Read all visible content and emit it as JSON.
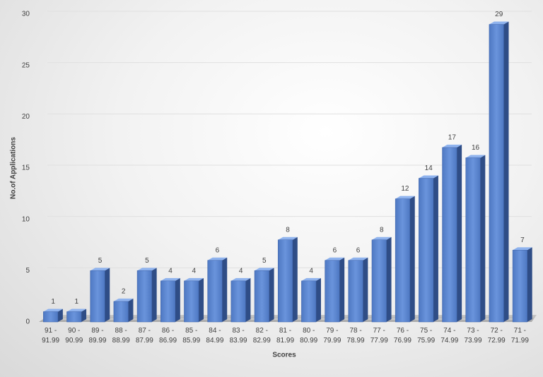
{
  "chart_data": {
    "type": "bar3d",
    "x_label": "Scores",
    "y_label": "No.of Applications",
    "categories": [
      "91 - 91.99",
      "90 - 90.99",
      "89 - 89.99",
      "88 - 88.99",
      "87 - 87.99",
      "86 - 86.99",
      "85 - 85.99",
      "84 - 84.99",
      "83 - 83.99",
      "82 - 82.99",
      "81 - 81.99",
      "80 - 80.99",
      "79 - 79.99",
      "78 - 78.99",
      "77 - 77.99",
      "76 - 76.99",
      "75 - 75.99",
      "74 - 74.99",
      "73 - 73.99",
      "72 - 72.99",
      "71 - 71.99"
    ],
    "values": [
      1,
      1,
      5,
      2,
      5,
      4,
      4,
      6,
      4,
      5,
      8,
      4,
      6,
      6,
      8,
      12,
      14,
      17,
      16,
      29,
      7
    ],
    "color": "#5b85d0",
    "ylim": [
      0,
      30
    ],
    "yticks": [
      0,
      5,
      10,
      15,
      20,
      25,
      30
    ],
    "grid": true
  }
}
